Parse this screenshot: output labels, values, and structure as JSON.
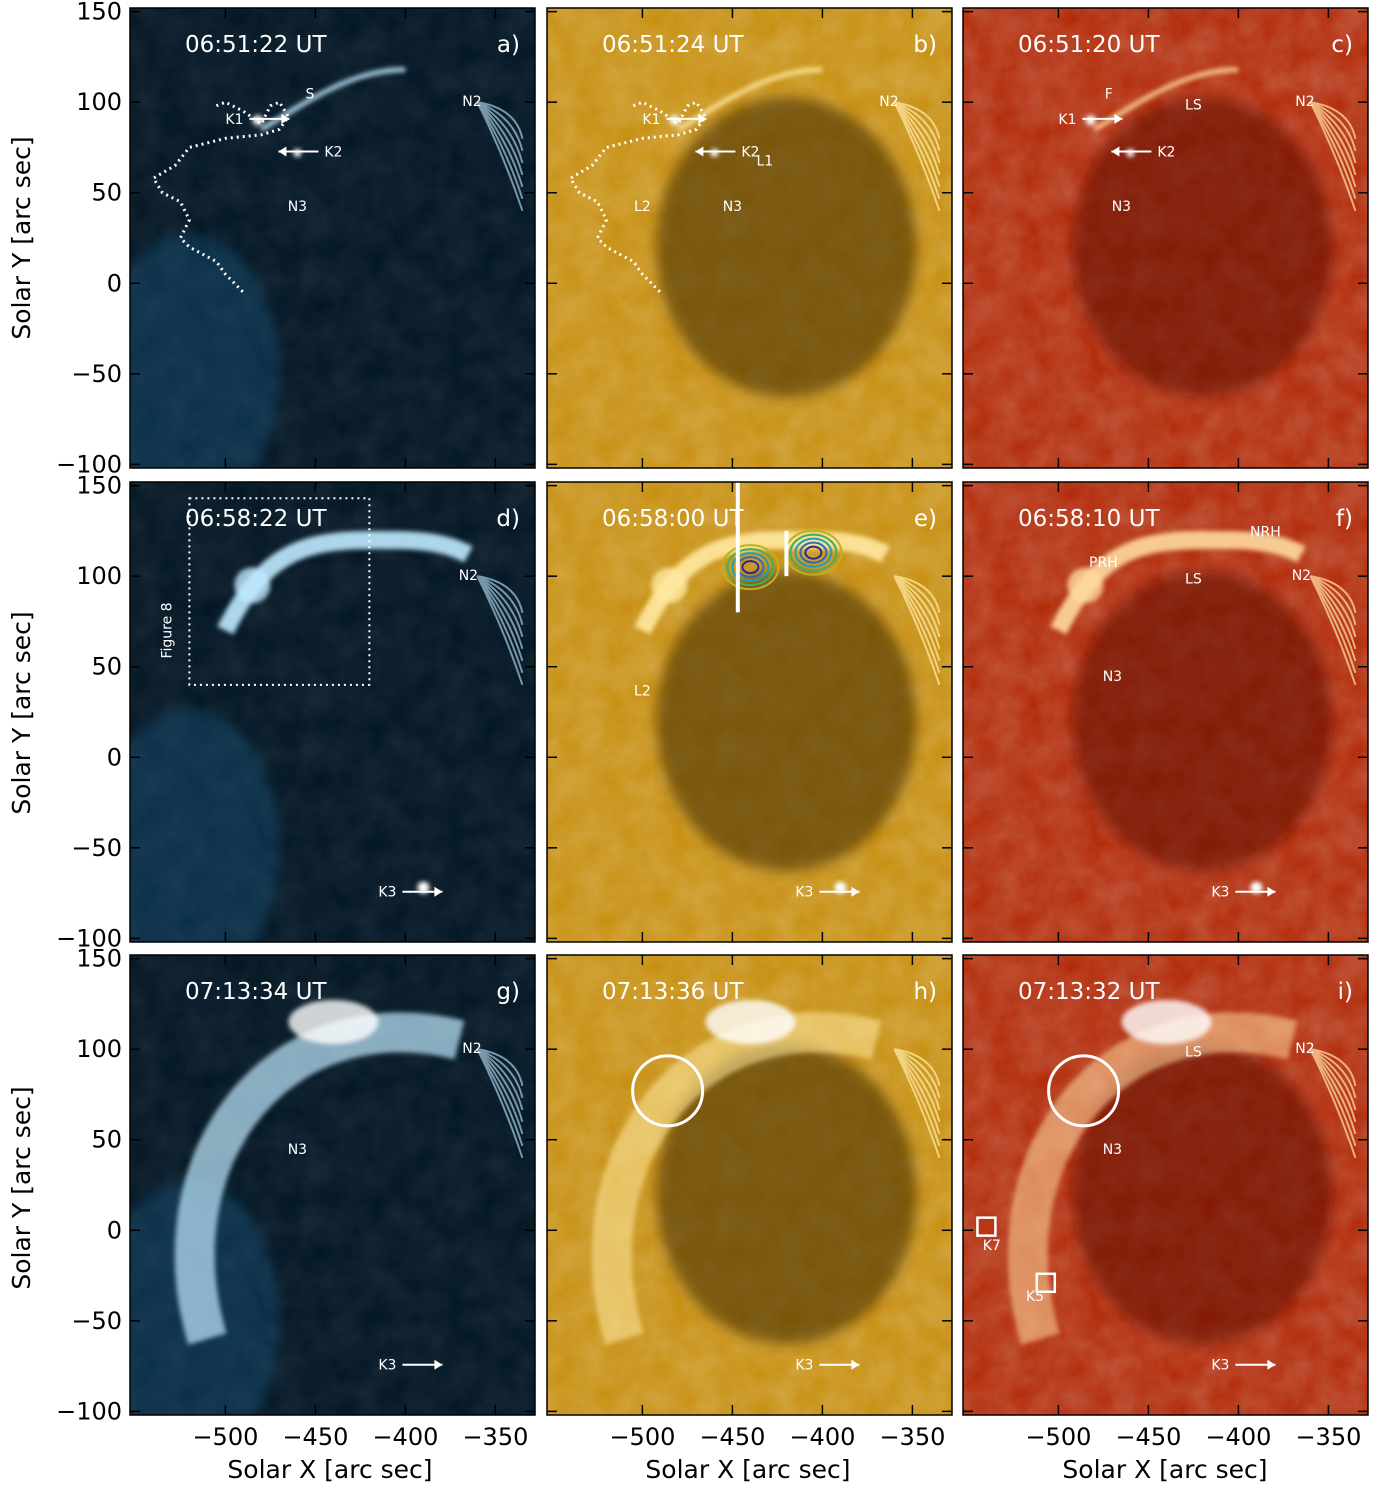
{
  "axes": {
    "x_title": "Solar X [arc sec]",
    "y_title": "Solar Y [arc sec]",
    "x_ticks": [
      "−500",
      "−450",
      "−400",
      "−350"
    ],
    "y_ticks": [
      "150",
      "100",
      "50",
      "0",
      "−50",
      "−100"
    ]
  },
  "panels": [
    {
      "id": "a",
      "tag": "a)",
      "time": "06:51:22 UT",
      "palette": "blue"
    },
    {
      "id": "b",
      "tag": "b)",
      "time": "06:51:24 UT",
      "palette": "gold"
    },
    {
      "id": "c",
      "tag": "c)",
      "time": "06:51:20 UT",
      "palette": "red"
    },
    {
      "id": "d",
      "tag": "d)",
      "time": "06:58:22 UT",
      "palette": "blue"
    },
    {
      "id": "e",
      "tag": "e)",
      "time": "06:58:00 UT",
      "palette": "gold"
    },
    {
      "id": "f",
      "tag": "f)",
      "time": "06:58:10 UT",
      "palette": "red"
    },
    {
      "id": "g",
      "tag": "g)",
      "time": "07:13:34 UT",
      "palette": "blue"
    },
    {
      "id": "h",
      "tag": "h)",
      "time": "07:13:36 UT",
      "palette": "gold"
    },
    {
      "id": "i",
      "tag": "i)",
      "time": "07:13:32 UT",
      "palette": "red"
    }
  ],
  "labels": {
    "a": [
      "K1",
      "S",
      "K2",
      "N3",
      "N2"
    ],
    "b": [
      "K1",
      "K2",
      "L1",
      "L2",
      "N3",
      "N2"
    ],
    "c": [
      "K1",
      "F",
      "LS",
      "N2",
      "K2",
      "N3"
    ],
    "d": [
      "Figure 8",
      "N2",
      "K3"
    ],
    "e": [
      "L2",
      "K3"
    ],
    "f": [
      "PRH",
      "NRH",
      "LS",
      "N2",
      "N3",
      "K3"
    ],
    "g": [
      "N2",
      "N3",
      "K3"
    ],
    "h": [
      "K3"
    ],
    "i": [
      "LS",
      "N2",
      "N3",
      "K7",
      "K5",
      "K3"
    ]
  },
  "colors": {
    "blue": {
      "bg": "#031624",
      "mid": "#1a6a9a",
      "bright": "#bfeaff"
    },
    "gold": {
      "bg": "#3a2600",
      "mid": "#c78f10",
      "bright": "#ffe9a0"
    },
    "red": {
      "bg": "#5e0a00",
      "mid": "#b12a08",
      "bright": "#ffd9a0"
    },
    "contours": [
      "#2a2a8c",
      "#3468b8",
      "#20a0b0",
      "#40b060",
      "#c0b020"
    ]
  }
}
